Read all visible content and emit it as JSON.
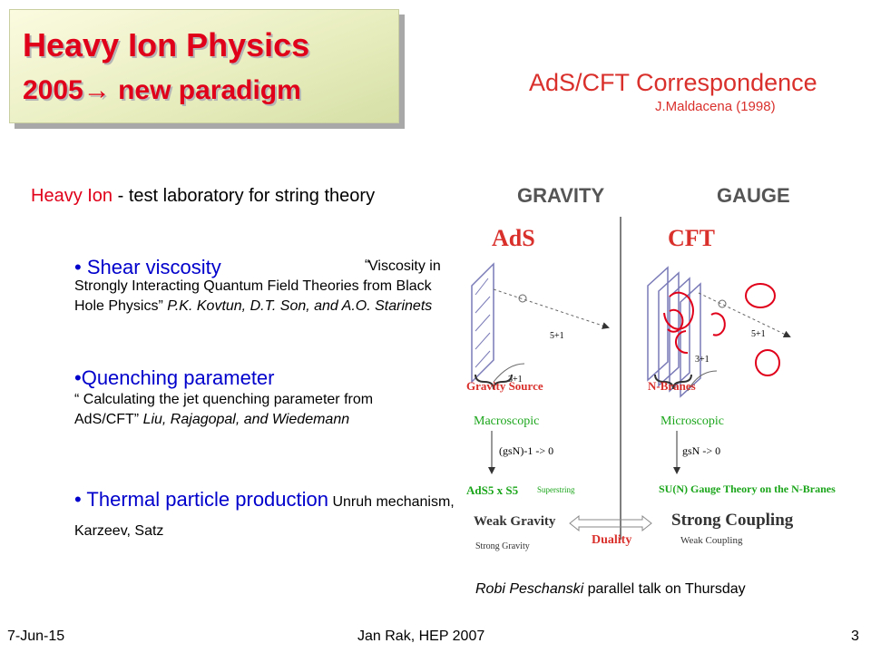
{
  "title": {
    "line1": "Heavy Ion Physics",
    "line2": "2005→ new paradigm"
  },
  "ads_cft": {
    "heading": "AdS/CFT Correspondence",
    "author": "J.Maldacena (1998)"
  },
  "intro": {
    "highlight": "Heavy Ion",
    "rest": " - test laboratory for string theory"
  },
  "bullets": [
    {
      "marker": "• ",
      "topic": "Shear viscosity",
      "quote_mark": "“",
      "ref_start": "Viscosity in Strongly Interacting Quantum Field Theories from Black Hole Physics” ",
      "ref_authors": "P.K. Kovtun, D.T. Son, and A.O. Starinets"
    },
    {
      "marker": "•",
      "topic": "Quenching parameter",
      "quote_mark": "“",
      "ref_start": "Calculating the jet quenching parameter from AdS/CFT” ",
      "ref_authors": "Liu, Rajagopal, and Wiedemann"
    },
    {
      "marker": "• ",
      "topic": "Thermal particle production",
      "ref_start": "Unruh mechanism, Karzeev, Satz"
    }
  ],
  "diagram": {
    "gravity": "GRAVITY",
    "gauge": "GAUGE",
    "ads": "AdS",
    "cft": "CFT",
    "dim_5": "5+1",
    "dim_3": "3+1",
    "gravity_source": "Gravity Source",
    "n_branes": "N-Branes",
    "macroscopic": "Macroscopic",
    "microscopic": "Microscopic",
    "limit_left": "(gsN)-1 -> 0",
    "limit_right": "gsN -> 0",
    "ads_s": "AdS5 x S5",
    "superstring": "Superstring",
    "sun_theory": "SU(N) Gauge Theory on the N-Branes",
    "weak_gravity": "Weak Gravity",
    "strong_coupling": "Strong Coupling",
    "strong_gravity": "Strong Gravity",
    "weak_coupling": "Weak Coupling",
    "duality": "Duality"
  },
  "credit": {
    "name": "Robi Peschanski",
    "rest": " parallel talk on Thursday"
  },
  "footer": {
    "date": "7-Jun-15",
    "center": "Jan Rak, HEP 2007",
    "page": "3"
  },
  "colors": {
    "title_red": "#e0001a",
    "topic_blue": "#0000cc",
    "diagram_green": "#1aa51a",
    "diagram_red": "#d9302c",
    "brane_purple": "#7a7ab8"
  }
}
